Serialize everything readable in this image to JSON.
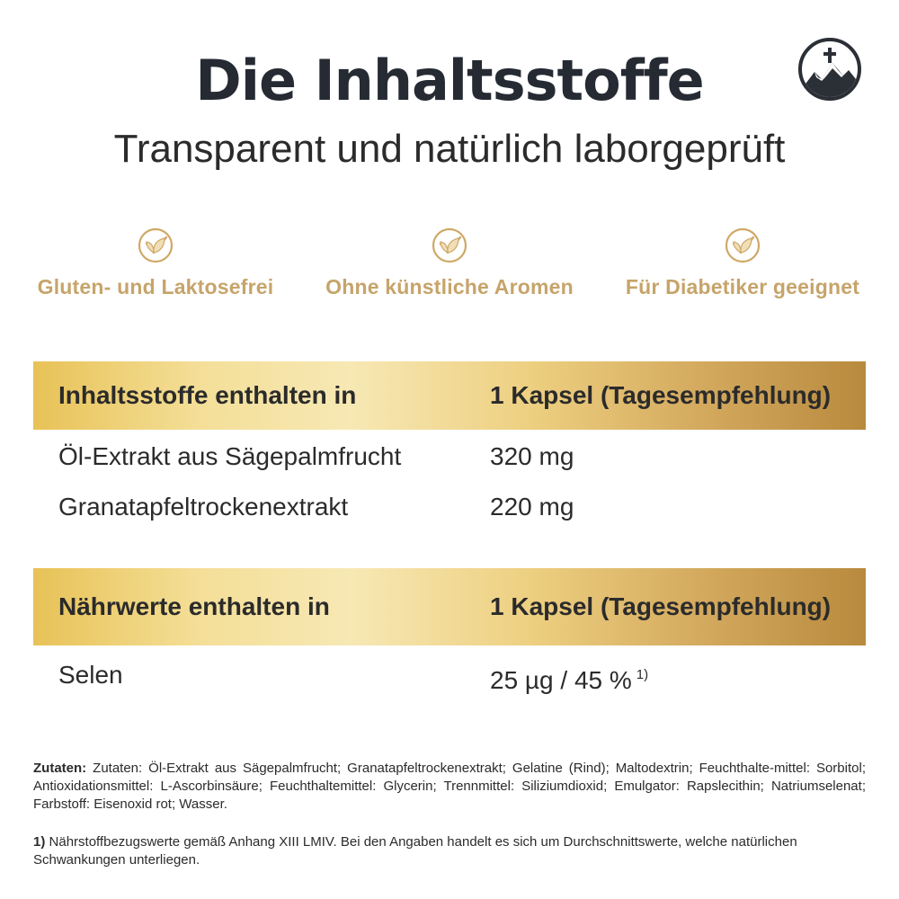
{
  "header": {
    "title": "Die Inhaltsstoffe",
    "subtitle": "Transparent und natürlich laborgeprüft"
  },
  "features": [
    {
      "icon": "leaf-check-icon",
      "label": "Gluten- und Laktosefrei"
    },
    {
      "icon": "leaf-check-icon",
      "label": "Ohne künstliche Aromen"
    },
    {
      "icon": "leaf-check-icon",
      "label": "Für Diabetiker geeignet"
    }
  ],
  "ingredients_table": {
    "header": {
      "label": "Inhaltsstoffe enthalten in",
      "amount": "1 Kapsel (Tagesempfehlung)"
    },
    "rows": [
      {
        "name": "Öl-Extrakt aus Sägepalmfrucht",
        "amount": "320 mg"
      },
      {
        "name": "Granatapfeltrockenextrakt",
        "amount": "220 mg"
      }
    ]
  },
  "nutrients_table": {
    "header": {
      "label": "Nährwerte enthalten in",
      "amount": "1 Kapsel (Tagesempfehlung)"
    },
    "rows": [
      {
        "name": "Selen",
        "amount": "25 µg / 45 %",
        "footnote_ref": "1)"
      }
    ]
  },
  "ingredients_text": {
    "label": "Zutaten:",
    "text": "Zutaten: Öl-Extrakt aus Sägepalmfrucht; Granatapfeltrockenextrakt; Gelatine (Rind); Maltodextrin; Feuchthalte-mittel: Sorbitol; Antioxidationsmittel: L-Ascorbinsäure; Feuchthaltemittel: Glycerin; Trennmittel: Siliziumdioxid; Emulgator: Rapslecithin; Natriumselenat; Farbstoff: Eisenoxid rot; Wasser."
  },
  "footnote": {
    "marker": "1)",
    "text": "Nährstoffbezugswerte gemäß Anhang XIII LMIV. Bei den Angaben handelt es sich um Durchschnittswerte, welche natürlichen Schwankungen unterliegen."
  },
  "colors": {
    "gold_label": "#c6a46a",
    "title": "#252a33",
    "band_light": "#f7e8b4",
    "band_dark": "#b88a3e"
  },
  "logo": {
    "icon": "mountain-cross-logo-icon"
  }
}
